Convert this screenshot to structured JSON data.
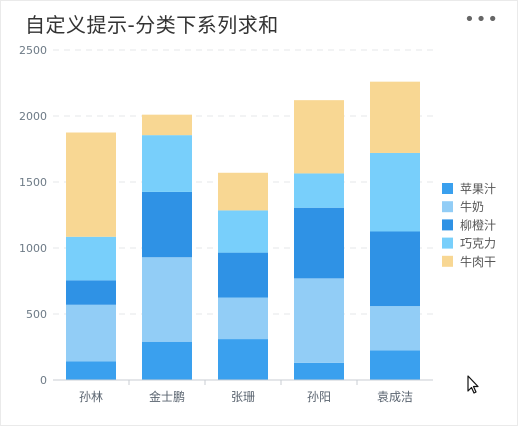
{
  "title": "自定义提示-分类下系列求和",
  "more_icon": "more-horizontal-icon",
  "chart_data": {
    "type": "bar",
    "stacked": true,
    "categories": [
      "孙林",
      "金士鹏",
      "张珊",
      "孙阳",
      "袁成洁"
    ],
    "series": [
      {
        "name": "苹果汁",
        "color": "#3aa0ee",
        "values": [
          140,
          290,
          310,
          130,
          225
        ]
      },
      {
        "name": "牛奶",
        "color": "#92cdf6",
        "values": [
          430,
          640,
          315,
          640,
          335
        ]
      },
      {
        "name": "柳橙汁",
        "color": "#2f92e5",
        "values": [
          185,
          495,
          340,
          535,
          565
        ]
      },
      {
        "name": "巧克力",
        "color": "#78cffb",
        "values": [
          330,
          430,
          320,
          260,
          595
        ]
      },
      {
        "name": "牛肉干",
        "color": "#f8d793",
        "values": [
          790,
          155,
          285,
          555,
          540
        ]
      }
    ],
    "yticks": [
      0,
      500,
      1000,
      1500,
      2000,
      2500
    ],
    "ylim": [
      0,
      2500
    ],
    "grid": true,
    "legend_position": "right"
  }
}
